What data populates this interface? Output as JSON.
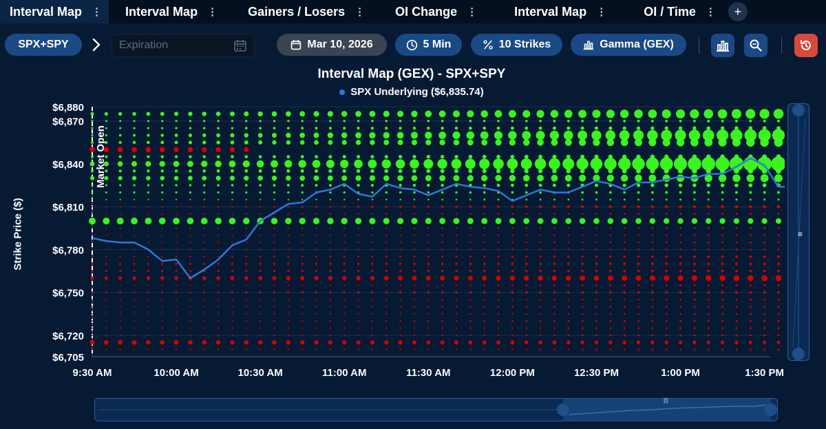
{
  "tabs": [
    {
      "label": "Interval Map",
      "active": true
    },
    {
      "label": "Interval Map",
      "active": false
    },
    {
      "label": "Gainers / Losers",
      "active": false
    },
    {
      "label": "OI Change",
      "active": false
    },
    {
      "label": "Interval Map",
      "active": false
    },
    {
      "label": "OI / Time",
      "active": false
    }
  ],
  "toolbar": {
    "symbol": "SPX+SPY",
    "expiration_placeholder": "Expiration",
    "date": "Mar 10, 2026",
    "interval": "5 Min",
    "strikes": "10 Strikes",
    "metric": "Gamma (GEX)"
  },
  "icons": {
    "tab_menu": "vertical-dots-icon",
    "add_tab": "plus-icon",
    "chevron": "chevron-right-icon",
    "calendar": "calendar-icon",
    "clock": "clock-icon",
    "percent": "percent-icon",
    "bars": "bar-chart-icon",
    "zoom": "zoom-icon",
    "reset": "history-icon"
  },
  "colors": {
    "background": "#061a33",
    "positive": "#3dff1f",
    "negative": "#e00000",
    "line": "#2f78d8",
    "pill": "#1a4a85",
    "reset": "#d8493b"
  },
  "chart_data": {
    "type": "scatter",
    "title": "Interval Map (GEX) - SPX+SPY",
    "ylabel": "Strike Price ($)",
    "xlabel": "",
    "legend": "SPX Underlying ($6,835.74)",
    "legend_position": "top",
    "annotation": "Market Open",
    "ylim": [
      6705,
      6880
    ],
    "y_ticks": [
      6705,
      6720,
      6750,
      6780,
      6810,
      6840,
      6870,
      6880
    ],
    "y_tick_labels": [
      "$6,705",
      "$6,720",
      "$6,750",
      "$6,780",
      "$6,810",
      "$6,840",
      "$6,870",
      "$6,880"
    ],
    "x_ticks": [
      "9:30 AM",
      "10:00 AM",
      "10:30 AM",
      "11:00 AM",
      "11:30 AM",
      "12:00 PM",
      "12:30 PM",
      "1:00 PM",
      "1:30 PM"
    ],
    "x_start_minutes": 570,
    "x_end_minutes": 825,
    "interval_minutes": 5,
    "strikes": [
      6875,
      6870,
      6865,
      6860,
      6855,
      6850,
      6845,
      6840,
      6835,
      6830,
      6825,
      6820,
      6815,
      6810,
      6805,
      6800,
      6795,
      6790,
      6785,
      6780,
      6775,
      6770,
      6765,
      6760,
      6755,
      6750,
      6745,
      6740,
      6735,
      6730,
      6725,
      6720,
      6715,
      6710
    ],
    "underlying": {
      "name": "SPX Underlying",
      "values": [
        6788,
        6786,
        6785,
        6785,
        6780,
        6772,
        6773,
        6760,
        6766,
        6773,
        6783,
        6787,
        6800,
        6806,
        6812,
        6813,
        6820,
        6822,
        6826,
        6819,
        6817,
        6826,
        6823,
        6822,
        6818,
        6822,
        6826,
        6824,
        6823,
        6821,
        6814,
        6818,
        6822,
        6820,
        6820,
        6824,
        6828,
        6826,
        6822,
        6827,
        6827,
        6829,
        6831,
        6830,
        6833,
        6833,
        6838,
        6844,
        6839,
        6824,
        6824,
        6835
      ]
    },
    "gex_levels": [
      {
        "strike": 6875,
        "sign": "positive",
        "size_start": 2.5,
        "size_end": 7.5
      },
      {
        "strike": 6870,
        "sign": "positive",
        "size_start": 1.5,
        "size_end": 2.0
      },
      {
        "strike": 6865,
        "sign": "positive",
        "size_start": 1.5,
        "size_end": 3.0
      },
      {
        "strike": 6860,
        "sign": "positive",
        "size_start": 1.5,
        "size_end": 9.5
      },
      {
        "strike": 6855,
        "sign": "positive",
        "size_start": 2.0,
        "size_end": 6.5
      },
      {
        "strike": 6850,
        "sign": "negative",
        "size_start": 4.0,
        "size_end": 2.5,
        "span_end_minutes": 625
      },
      {
        "strike": 6845,
        "sign": "positive",
        "size_start": 2.0,
        "size_end": 3.5
      },
      {
        "strike": 6840,
        "sign": "positive",
        "size_start": 3.5,
        "size_end": 11.0
      },
      {
        "strike": 6835,
        "sign": "positive",
        "size_start": 2.0,
        "size_end": 4.0
      },
      {
        "strike": 6830,
        "sign": "positive",
        "size_start": 3.0,
        "size_end": 6.0
      },
      {
        "strike": 6825,
        "sign": "positive",
        "size_start": 1.5,
        "size_end": 3.0
      },
      {
        "strike": 6820,
        "sign": "positive",
        "size_start": 1.5,
        "size_end": 2.0
      },
      {
        "strike": 6815,
        "sign": "positive",
        "size_start": 1.0,
        "size_end": 1.5
      },
      {
        "strike": 6810,
        "sign": "negative",
        "size_start": 1.0,
        "size_end": 2.5
      },
      {
        "strike": 6805,
        "sign": "negative",
        "size_start": 1.0,
        "size_end": 1.5
      },
      {
        "strike": 6800,
        "sign": "positive",
        "size_start": 5.0,
        "size_end": 4.0
      },
      {
        "strike": 6795,
        "sign": "negative",
        "size_start": 1.0,
        "size_end": 1.5
      },
      {
        "strike": 6790,
        "sign": "negative",
        "size_start": 1.0,
        "size_end": 1.5
      },
      {
        "strike": 6785,
        "sign": "negative",
        "size_start": 1.0,
        "size_end": 1.5
      },
      {
        "strike": 6780,
        "sign": "negative",
        "size_start": 1.0,
        "size_end": 1.5
      },
      {
        "strike": 6775,
        "sign": "negative",
        "size_start": 1.0,
        "size_end": 2.0
      },
      {
        "strike": 6770,
        "sign": "negative",
        "size_start": 1.5,
        "size_end": 2.0
      },
      {
        "strike": 6765,
        "sign": "negative",
        "size_start": 1.5,
        "size_end": 2.0
      },
      {
        "strike": 6760,
        "sign": "negative",
        "size_start": 2.5,
        "size_end": 4.5
      },
      {
        "strike": 6755,
        "sign": "negative",
        "size_start": 1.0,
        "size_end": 1.5
      },
      {
        "strike": 6750,
        "sign": "negative",
        "size_start": 1.5,
        "size_end": 2.0
      },
      {
        "strike": 6745,
        "sign": "negative",
        "size_start": 1.0,
        "size_end": 1.5
      },
      {
        "strike": 6740,
        "sign": "negative",
        "size_start": 1.0,
        "size_end": 1.5
      },
      {
        "strike": 6735,
        "sign": "negative",
        "size_start": 1.0,
        "size_end": 1.5
      },
      {
        "strike": 6730,
        "sign": "negative",
        "size_start": 1.0,
        "size_end": 1.5
      },
      {
        "strike": 6725,
        "sign": "negative",
        "size_start": 1.0,
        "size_end": 1.5
      },
      {
        "strike": 6720,
        "sign": "negative",
        "size_start": 1.0,
        "size_end": 1.5
      },
      {
        "strike": 6715,
        "sign": "negative",
        "size_start": 3.5,
        "size_end": 2.5
      },
      {
        "strike": 6710,
        "sign": "negative",
        "size_start": 1.0,
        "size_end": 1.5
      }
    ]
  }
}
